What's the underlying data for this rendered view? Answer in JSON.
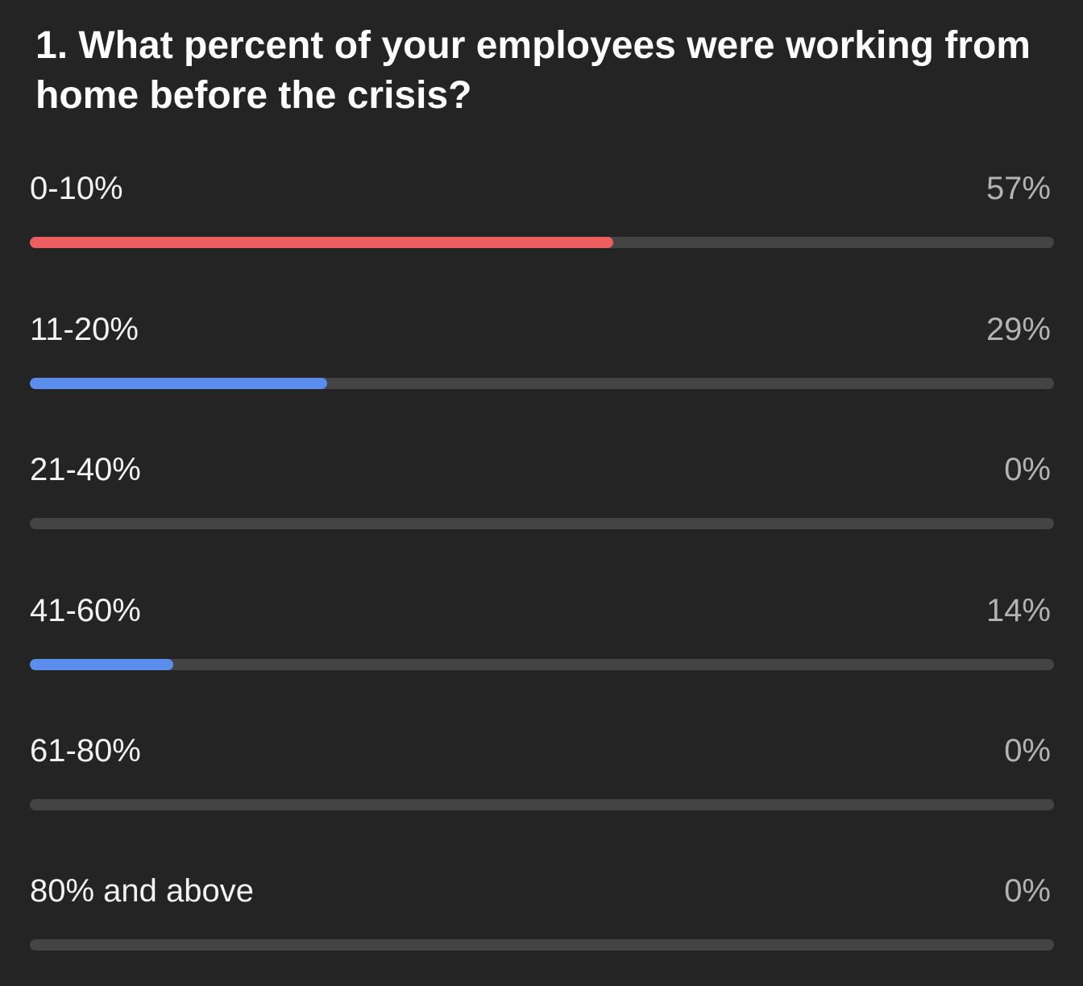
{
  "poll": {
    "question": "1. What percent of your employees were working from home before the crisis?",
    "options": [
      {
        "label": "0-10%",
        "percent_text": "57%",
        "percent": 57,
        "color": "#ec5f5e"
      },
      {
        "label": "11-20%",
        "percent_text": "29%",
        "percent": 29,
        "color": "#5b8dec"
      },
      {
        "label": "21-40%",
        "percent_text": "0%",
        "percent": 0,
        "color": "#5b8dec"
      },
      {
        "label": "41-60%",
        "percent_text": "14%",
        "percent": 14,
        "color": "#5b8dec"
      },
      {
        "label": "61-80%",
        "percent_text": "0%",
        "percent": 0,
        "color": "#5b8dec"
      },
      {
        "label": "80% and above",
        "percent_text": "0%",
        "percent": 0,
        "color": "#5b8dec"
      }
    ]
  },
  "colors": {
    "background": "#242424",
    "track": "#444444",
    "leading_option": "#ec5f5e",
    "other_option": "#5b8dec"
  }
}
